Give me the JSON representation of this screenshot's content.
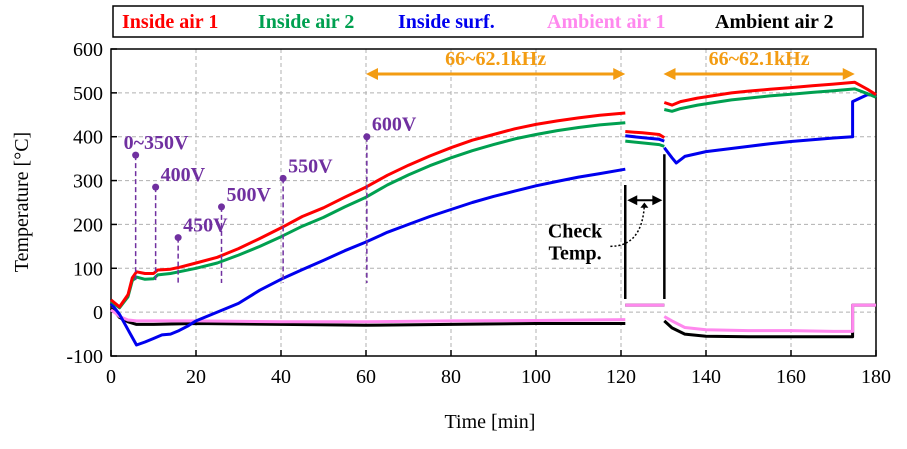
{
  "chart_data": {
    "type": "line",
    "xlabel": "Time [min]",
    "ylabel": "Temperature [°C]",
    "xlim": [
      0,
      180
    ],
    "ylim": [
      -100,
      600
    ],
    "xticks": [
      0,
      20,
      40,
      60,
      80,
      100,
      120,
      140,
      160,
      180
    ],
    "yticks": [
      -100,
      0,
      100,
      200,
      300,
      400,
      500,
      600
    ],
    "grid": true,
    "legend_position": "top",
    "series": [
      {
        "name": "Inside air 1",
        "color": "#ff0000",
        "segments": [
          [
            [
              0,
              28
            ],
            [
              2,
              12
            ],
            [
              4,
              40
            ],
            [
              5,
              78
            ],
            [
              6,
              92
            ],
            [
              8,
              88
            ],
            [
              10,
              88
            ],
            [
              11,
              96
            ],
            [
              14,
              98
            ],
            [
              16,
              102
            ],
            [
              20,
              112
            ],
            [
              25,
              125
            ],
            [
              30,
              145
            ],
            [
              35,
              168
            ],
            [
              40,
              192
            ],
            [
              45,
              218
            ],
            [
              50,
              238
            ],
            [
              55,
              262
            ],
            [
              60,
              285
            ],
            [
              65,
              312
            ],
            [
              70,
              335
            ],
            [
              75,
              356
            ],
            [
              80,
              375
            ],
            [
              85,
              392
            ],
            [
              90,
              405
            ],
            [
              95,
              418
            ],
            [
              100,
              428
            ],
            [
              105,
              436
            ],
            [
              110,
              443
            ],
            [
              115,
              449
            ],
            [
              121,
              454
            ]
          ],
          [
            [
              121,
              412
            ],
            [
              125,
              409
            ],
            [
              129,
              405
            ],
            [
              130.2,
              398
            ]
          ],
          [
            [
              130.2,
              478
            ],
            [
              132,
              472
            ],
            [
              134,
              480
            ],
            [
              138,
              488
            ],
            [
              142,
              494
            ],
            [
              146,
              500
            ],
            [
              150,
              504
            ],
            [
              155,
              508
            ],
            [
              160,
              512
            ],
            [
              165,
              516
            ],
            [
              170,
              520
            ],
            [
              175,
              524
            ],
            [
              178,
              508
            ],
            [
              180,
              496
            ]
          ]
        ]
      },
      {
        "name": "Inside air 2",
        "color": "#00a050",
        "segments": [
          [
            [
              0,
              25
            ],
            [
              2,
              10
            ],
            [
              4,
              35
            ],
            [
              5,
              72
            ],
            [
              6,
              80
            ],
            [
              8,
              75
            ],
            [
              10,
              76
            ],
            [
              11,
              85
            ],
            [
              14,
              88
            ],
            [
              16,
              92
            ],
            [
              20,
              100
            ],
            [
              25,
              112
            ],
            [
              30,
              130
            ],
            [
              35,
              150
            ],
            [
              40,
              172
            ],
            [
              45,
              196
            ],
            [
              50,
              216
            ],
            [
              55,
              240
            ],
            [
              60,
              262
            ],
            [
              65,
              290
            ],
            [
              70,
              313
            ],
            [
              75,
              334
            ],
            [
              80,
              352
            ],
            [
              85,
              368
            ],
            [
              90,
              382
            ],
            [
              95,
              395
            ],
            [
              100,
              405
            ],
            [
              105,
              414
            ],
            [
              110,
              421
            ],
            [
              115,
              427
            ],
            [
              121,
              432
            ]
          ],
          [
            [
              121,
              390
            ],
            [
              125,
              386
            ],
            [
              129,
              382
            ],
            [
              130.2,
              378
            ]
          ],
          [
            [
              130.2,
              462
            ],
            [
              132,
              458
            ],
            [
              134,
              464
            ],
            [
              138,
              472
            ],
            [
              142,
              478
            ],
            [
              146,
              484
            ],
            [
              150,
              488
            ],
            [
              155,
              493
            ],
            [
              160,
              497
            ],
            [
              165,
              501
            ],
            [
              170,
              505
            ],
            [
              175,
              509
            ],
            [
              178,
              498
            ],
            [
              180,
              490
            ]
          ]
        ]
      },
      {
        "name": "Inside surf.",
        "color": "#0000ee",
        "segments": [
          [
            [
              0,
              20
            ],
            [
              2,
              -5
            ],
            [
              4,
              -40
            ],
            [
              6,
              -75
            ],
            [
              8,
              -68
            ],
            [
              10,
              -60
            ],
            [
              12,
              -52
            ],
            [
              14,
              -50
            ],
            [
              16,
              -42
            ],
            [
              18,
              -32
            ],
            [
              20,
              -20
            ],
            [
              25,
              0
            ],
            [
              30,
              20
            ],
            [
              35,
              50
            ],
            [
              40,
              75
            ],
            [
              45,
              97
            ],
            [
              50,
              118
            ],
            [
              55,
              140
            ],
            [
              60,
              160
            ],
            [
              65,
              182
            ],
            [
              70,
              200
            ],
            [
              75,
              218
            ],
            [
              80,
              234
            ],
            [
              85,
              250
            ],
            [
              90,
              264
            ],
            [
              95,
              276
            ],
            [
              100,
              288
            ],
            [
              105,
              298
            ],
            [
              110,
              308
            ],
            [
              115,
              316
            ],
            [
              121,
              326
            ]
          ],
          [
            [
              121,
              402
            ],
            [
              125,
              398
            ],
            [
              129,
              394
            ],
            [
              130.2,
              390
            ]
          ],
          [
            [
              130.2,
              375
            ],
            [
              132,
              352
            ],
            [
              133,
              340
            ],
            [
              135,
              355
            ],
            [
              140,
              366
            ],
            [
              145,
              372
            ],
            [
              150,
              378
            ],
            [
              155,
              384
            ],
            [
              160,
              389
            ],
            [
              165,
              393
            ],
            [
              170,
              397
            ],
            [
              174.5,
              400
            ],
            [
              174.5,
              480
            ],
            [
              178,
              496
            ],
            [
              180,
              494
            ]
          ]
        ]
      },
      {
        "name": "Ambient air 1",
        "color": "#ff88ee",
        "segments": [
          [
            [
              0,
              5
            ],
            [
              1,
              -2
            ],
            [
              2,
              -10
            ],
            [
              4,
              -18
            ],
            [
              6,
              -20
            ],
            [
              10,
              -20
            ],
            [
              20,
              -20
            ],
            [
              40,
              -22
            ],
            [
              60,
              -22
            ],
            [
              80,
              -20
            ],
            [
              100,
              -19
            ],
            [
              121,
              -17
            ]
          ],
          [
            [
              121,
              16
            ],
            [
              130.2,
              16
            ]
          ],
          [
            [
              130.2,
              -10
            ],
            [
              132,
              -20
            ],
            [
              135,
              -35
            ],
            [
              140,
              -40
            ],
            [
              150,
              -42
            ],
            [
              160,
              -42
            ],
            [
              170,
              -44
            ],
            [
              174.5,
              -44
            ],
            [
              174.5,
              16
            ],
            [
              180,
              16
            ]
          ]
        ]
      },
      {
        "name": "Ambient air 2",
        "color": "#000000",
        "segments": [
          [
            [
              0,
              8
            ],
            [
              1,
              0
            ],
            [
              2,
              -12
            ],
            [
              4,
              -22
            ],
            [
              6,
              -28
            ],
            [
              10,
              -28
            ],
            [
              20,
              -26
            ],
            [
              40,
              -28
            ],
            [
              60,
              -30
            ],
            [
              80,
              -28
            ],
            [
              100,
              -26
            ],
            [
              121,
              -26
            ]
          ],
          [
            [
              121,
              16
            ],
            [
              130.2,
              16
            ]
          ],
          [
            [
              130.2,
              -20
            ],
            [
              132,
              -36
            ],
            [
              135,
              -50
            ],
            [
              140,
              -55
            ],
            [
              150,
              -56
            ],
            [
              160,
              -56
            ],
            [
              170,
              -56
            ],
            [
              174.5,
              -56
            ],
            [
              174.5,
              16
            ],
            [
              180,
              16
            ]
          ]
        ]
      }
    ],
    "voltage_markers": [
      {
        "label": "0~350V",
        "x": 5.8,
        "y": 358
      },
      {
        "label": "400V",
        "x": 10.5,
        "y": 285
      },
      {
        "label": "450V",
        "x": 15.8,
        "y": 170
      },
      {
        "label": "500V",
        "x": 26,
        "y": 240
      },
      {
        "label": "550V",
        "x": 40.5,
        "y": 305
      },
      {
        "label": "600V",
        "x": 60.2,
        "y": 400
      }
    ],
    "frequency_ranges": [
      {
        "label": "66~62.1kHz",
        "x_start": 60,
        "x_end": 121
      },
      {
        "label": "66~62.1kHz",
        "x_start": 130,
        "x_end": 175
      }
    ],
    "check_label": "Check\nTemp.",
    "check_span": [
      121,
      130.2
    ]
  }
}
